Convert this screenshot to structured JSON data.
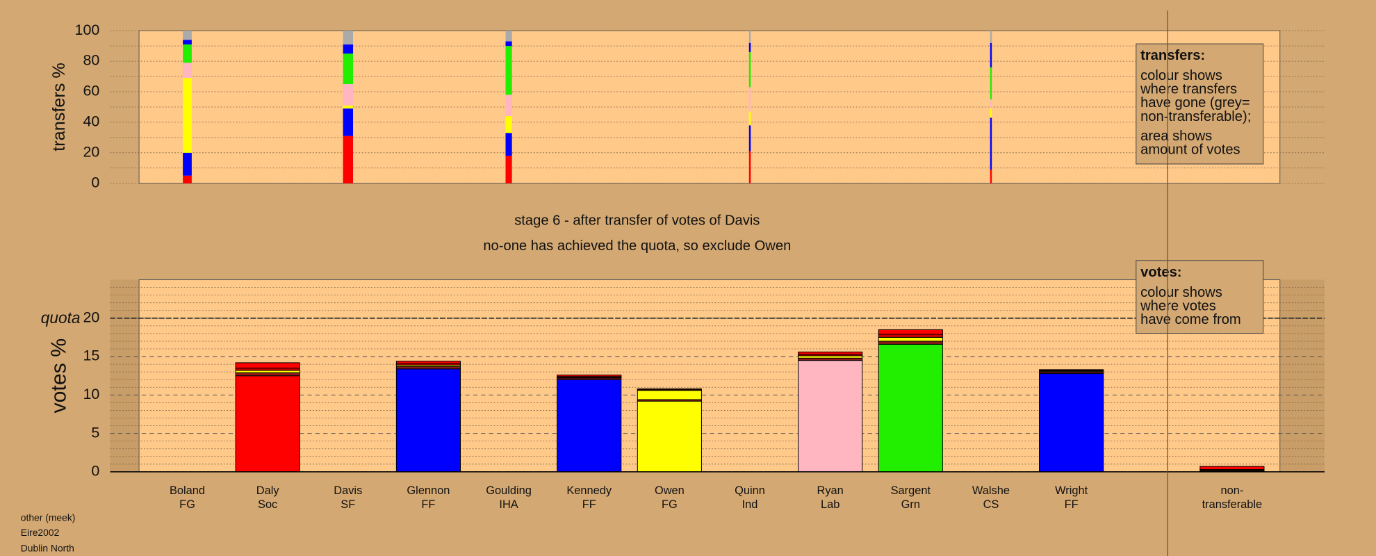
{
  "chart_data": [
    {
      "type": "bar",
      "stacked": true,
      "ylabel": "transfers %",
      "ylim": [
        0,
        100
      ],
      "yticks": [
        0,
        20,
        40,
        60,
        80,
        100
      ],
      "grid_yticks": [
        0,
        10,
        20,
        30,
        40,
        50,
        60,
        70,
        80,
        90,
        100
      ],
      "amounts": [
        4.6,
        null,
        5.2,
        null,
        3.3,
        null,
        null,
        0.9,
        null,
        null,
        0.9,
        null,
        null
      ],
      "series": [
        {
          "color": "#ff0000",
          "values": [
            5,
            null,
            31,
            null,
            18,
            null,
            null,
            21,
            null,
            null,
            9,
            null,
            null
          ]
        },
        {
          "color": "#0000ff",
          "values": [
            15,
            null,
            18,
            null,
            15,
            null,
            null,
            17,
            null,
            null,
            34,
            null,
            null
          ]
        },
        {
          "color": "#ffff00",
          "values": [
            49,
            null,
            2,
            null,
            11,
            null,
            null,
            9,
            null,
            null,
            6,
            null,
            null
          ]
        },
        {
          "color": "#ffb6c1",
          "values": [
            10,
            null,
            14,
            null,
            14,
            null,
            null,
            16,
            null,
            null,
            6,
            null,
            null
          ]
        },
        {
          "color": "#22ee00",
          "values": [
            12,
            null,
            20,
            null,
            32,
            null,
            null,
            23,
            null,
            null,
            21,
            null,
            null
          ]
        },
        {
          "color": "#0000ff",
          "values": [
            3,
            null,
            6,
            null,
            3,
            null,
            null,
            6,
            null,
            null,
            16,
            null,
            null
          ]
        },
        {
          "color": "#aaaaaa",
          "values": [
            6,
            null,
            9,
            null,
            7,
            null,
            null,
            8,
            null,
            null,
            8,
            null,
            null
          ]
        }
      ],
      "annotation": {
        "title": "transfers:",
        "paragraphs": [
          [
            "colour shows",
            "where transfers",
            "have gone (grey=",
            "non-transferable);"
          ],
          [
            "area shows",
            "amount of votes"
          ]
        ]
      }
    },
    {
      "type": "bar",
      "stacked": true,
      "ylabel": "votes %",
      "ylim": [
        0,
        25
      ],
      "yticks": [
        0,
        5,
        10,
        15,
        20
      ],
      "grid_yticks": [
        1,
        2,
        3,
        4,
        6,
        7,
        8,
        9,
        11,
        12,
        13,
        14,
        16,
        17,
        18,
        19,
        21,
        22,
        23,
        24
      ],
      "quota": {
        "value": 20,
        "label": "quota"
      },
      "categories": [
        [
          "Boland",
          "FG"
        ],
        [
          "Daly",
          "Soc"
        ],
        [
          "Davis",
          "SF"
        ],
        [
          "Glennon",
          "FF"
        ],
        [
          "Goulding",
          "IHA"
        ],
        [
          "Kennedy",
          "FF"
        ],
        [
          "Owen",
          "FG"
        ],
        [
          "Quinn",
          "Ind"
        ],
        [
          "Ryan",
          "Lab"
        ],
        [
          "Sargent",
          "Grn"
        ],
        [
          "Walshe",
          "CS"
        ],
        [
          "Wright",
          "FF"
        ],
        [
          "non-",
          "transferable"
        ]
      ],
      "series": [
        {
          "colors": [
            "#0000ff",
            "#ff0000",
            "#008800",
            "#0000ff",
            "#888888",
            "#0000ff",
            "#ffff00",
            "#888888",
            "#ffb6c1",
            "#22ee00",
            "#888888",
            "#0000ff",
            "#aaaaaa"
          ],
          "values": [
            0,
            12.5,
            0,
            13.4,
            0,
            12.0,
            9.2,
            0,
            14.5,
            16.6,
            0,
            12.8,
            0
          ]
        },
        {
          "color": "#8b1a1a",
          "values": [
            0,
            0.4,
            0,
            0.3,
            0,
            0.2,
            0.2,
            0,
            0.3,
            0.4,
            0,
            0.2,
            0.1
          ]
        },
        {
          "color": "#ffff00",
          "values": [
            0,
            0.3,
            0,
            0.2,
            0,
            0.1,
            1.2,
            0,
            0.3,
            0.5,
            0,
            0.1,
            0.1
          ]
        },
        {
          "color": "#cc0000",
          "values": [
            0,
            0.3,
            0,
            0.2,
            0,
            0.1,
            0.1,
            0,
            0.2,
            0.4,
            0,
            0.1,
            0.1
          ]
        },
        {
          "color": "#ff0000",
          "values": [
            0,
            0.7,
            0,
            0.3,
            0,
            0.2,
            0.1,
            0,
            0.3,
            0.6,
            0,
            0.1,
            0.4
          ]
        }
      ],
      "annotation": {
        "title": "votes:",
        "paragraphs": [
          [
            "colour shows",
            "where votes",
            "have come from"
          ]
        ]
      }
    }
  ],
  "caption": [
    "stage 6 - after transfer of votes of Davis",
    "no-one has achieved the quota, so exclude Owen"
  ],
  "footer": [
    "other (meek)",
    "Eire2002",
    "Dublin North"
  ]
}
